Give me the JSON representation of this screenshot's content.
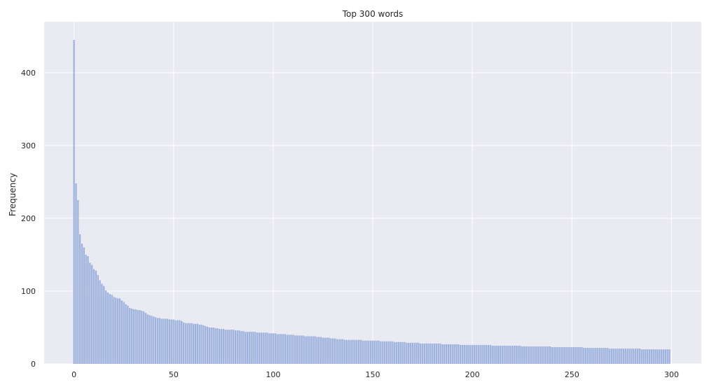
{
  "chart_data": {
    "type": "bar",
    "title": "Top 300 words",
    "xlabel": "",
    "ylabel": "Frequency",
    "xlim": [
      -15,
      315
    ],
    "ylim": [
      0,
      470
    ],
    "xticks": [
      0,
      50,
      100,
      150,
      200,
      250,
      300
    ],
    "yticks": [
      0,
      100,
      200,
      300,
      400
    ],
    "grid": true,
    "colors": {
      "bar": "#8fa8d8",
      "plot_background": "#eaeaf2",
      "grid": "#ffffff"
    },
    "series": [
      {
        "values": [
          445,
          248,
          225,
          178,
          165,
          160,
          150,
          148,
          139,
          136,
          130,
          128,
          122,
          115,
          110,
          107,
          101,
          98,
          96,
          95,
          92,
          91,
          90,
          90,
          87,
          85,
          82,
          80,
          77,
          76,
          75,
          75,
          74,
          74,
          73,
          72,
          70,
          68,
          67,
          66,
          65,
          64,
          63,
          63,
          62,
          62,
          62,
          62,
          61,
          61,
          61,
          60,
          60,
          60,
          59,
          57,
          56,
          56,
          56,
          56,
          55,
          55,
          55,
          54,
          54,
          53,
          52,
          51,
          50,
          50,
          50,
          49,
          49,
          48,
          48,
          48,
          47,
          47,
          47,
          47,
          47,
          46,
          46,
          46,
          45,
          45,
          44,
          44,
          44,
          44,
          44,
          44,
          43,
          43,
          43,
          43,
          43,
          43,
          42,
          42,
          42,
          42,
          41,
          41,
          41,
          41,
          41,
          40,
          40,
          40,
          40,
          39,
          39,
          39,
          39,
          39,
          38,
          38,
          38,
          38,
          38,
          38,
          37,
          37,
          37,
          36,
          36,
          36,
          36,
          35,
          35,
          35,
          34,
          34,
          34,
          34,
          33,
          33,
          33,
          33,
          33,
          33,
          33,
          33,
          33,
          32,
          32,
          32,
          32,
          32,
          32,
          32,
          32,
          32,
          31,
          31,
          31,
          31,
          31,
          31,
          31,
          30,
          30,
          30,
          30,
          30,
          30,
          29,
          29,
          29,
          29,
          29,
          29,
          29,
          28,
          28,
          28,
          28,
          28,
          28,
          28,
          28,
          28,
          28,
          28,
          27,
          27,
          27,
          27,
          27,
          27,
          27,
          27,
          27,
          26,
          26,
          26,
          26,
          26,
          26,
          26,
          26,
          26,
          26,
          26,
          26,
          26,
          26,
          26,
          26,
          25,
          25,
          25,
          25,
          25,
          25,
          25,
          25,
          25,
          25,
          25,
          25,
          25,
          25,
          25,
          24,
          24,
          24,
          24,
          24,
          24,
          24,
          24,
          24,
          24,
          24,
          24,
          24,
          24,
          24,
          23,
          23,
          23,
          23,
          23,
          23,
          23,
          23,
          23,
          23,
          23,
          23,
          23,
          23,
          23,
          23,
          22,
          22,
          22,
          22,
          22,
          22,
          22,
          22,
          22,
          22,
          22,
          22,
          22,
          21,
          21,
          21,
          21,
          21,
          21,
          21,
          21,
          21,
          21,
          21,
          21,
          21,
          21,
          21,
          21,
          20,
          20,
          20,
          20,
          20,
          20,
          20,
          20,
          20,
          20,
          20,
          20,
          20,
          20,
          20
        ]
      }
    ]
  }
}
